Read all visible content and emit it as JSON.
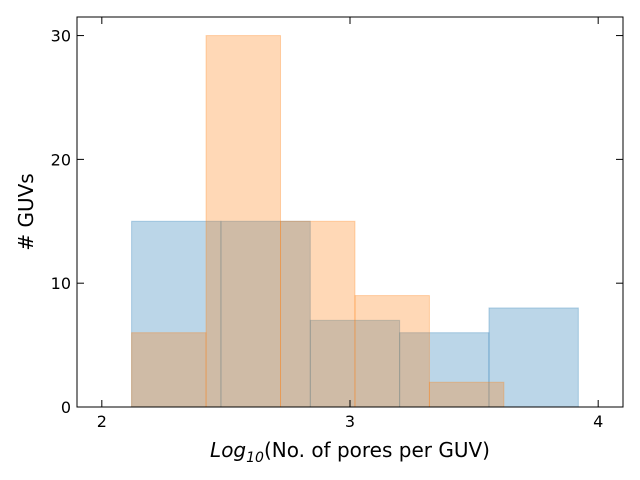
{
  "chart_data": {
    "type": "bar",
    "subtype": "overlapping-histogram",
    "title": "",
    "xlabel_main": "Log",
    "xlabel_sub": "10",
    "xlabel_rest": "(No. of pores per GUV)",
    "ylabel": "# GUVs",
    "xlim": [
      1.9,
      4.1
    ],
    "ylim": [
      0,
      31.5
    ],
    "x_ticks": [
      {
        "value": 2,
        "label": "2"
      },
      {
        "value": 3,
        "label": "3"
      },
      {
        "value": 4,
        "label": "4"
      }
    ],
    "y_ticks": [
      {
        "value": 0,
        "label": "0"
      },
      {
        "value": 10,
        "label": "10"
      },
      {
        "value": 20,
        "label": "20"
      },
      {
        "value": 30,
        "label": "30"
      }
    ],
    "grid": false,
    "legend": "none",
    "series": [
      {
        "color": "#1f77b4",
        "opacity": 0.3,
        "bins": [
          {
            "x0": 2.12,
            "x1": 2.48,
            "count": 15
          },
          {
            "x0": 2.48,
            "x1": 2.84,
            "count": 15
          },
          {
            "x0": 2.84,
            "x1": 3.2,
            "count": 7
          },
          {
            "x0": 3.2,
            "x1": 3.56,
            "count": 6
          },
          {
            "x0": 3.56,
            "x1": 3.92,
            "count": 8
          }
        ]
      },
      {
        "color": "#ff7f0e",
        "opacity": 0.3,
        "bins": [
          {
            "x0": 2.12,
            "x1": 2.42,
            "count": 6
          },
          {
            "x0": 2.42,
            "x1": 2.72,
            "count": 30
          },
          {
            "x0": 2.72,
            "x1": 3.02,
            "count": 15
          },
          {
            "x0": 3.02,
            "x1": 3.32,
            "count": 9
          },
          {
            "x0": 3.32,
            "x1": 3.62,
            "count": 2
          }
        ]
      }
    ]
  }
}
